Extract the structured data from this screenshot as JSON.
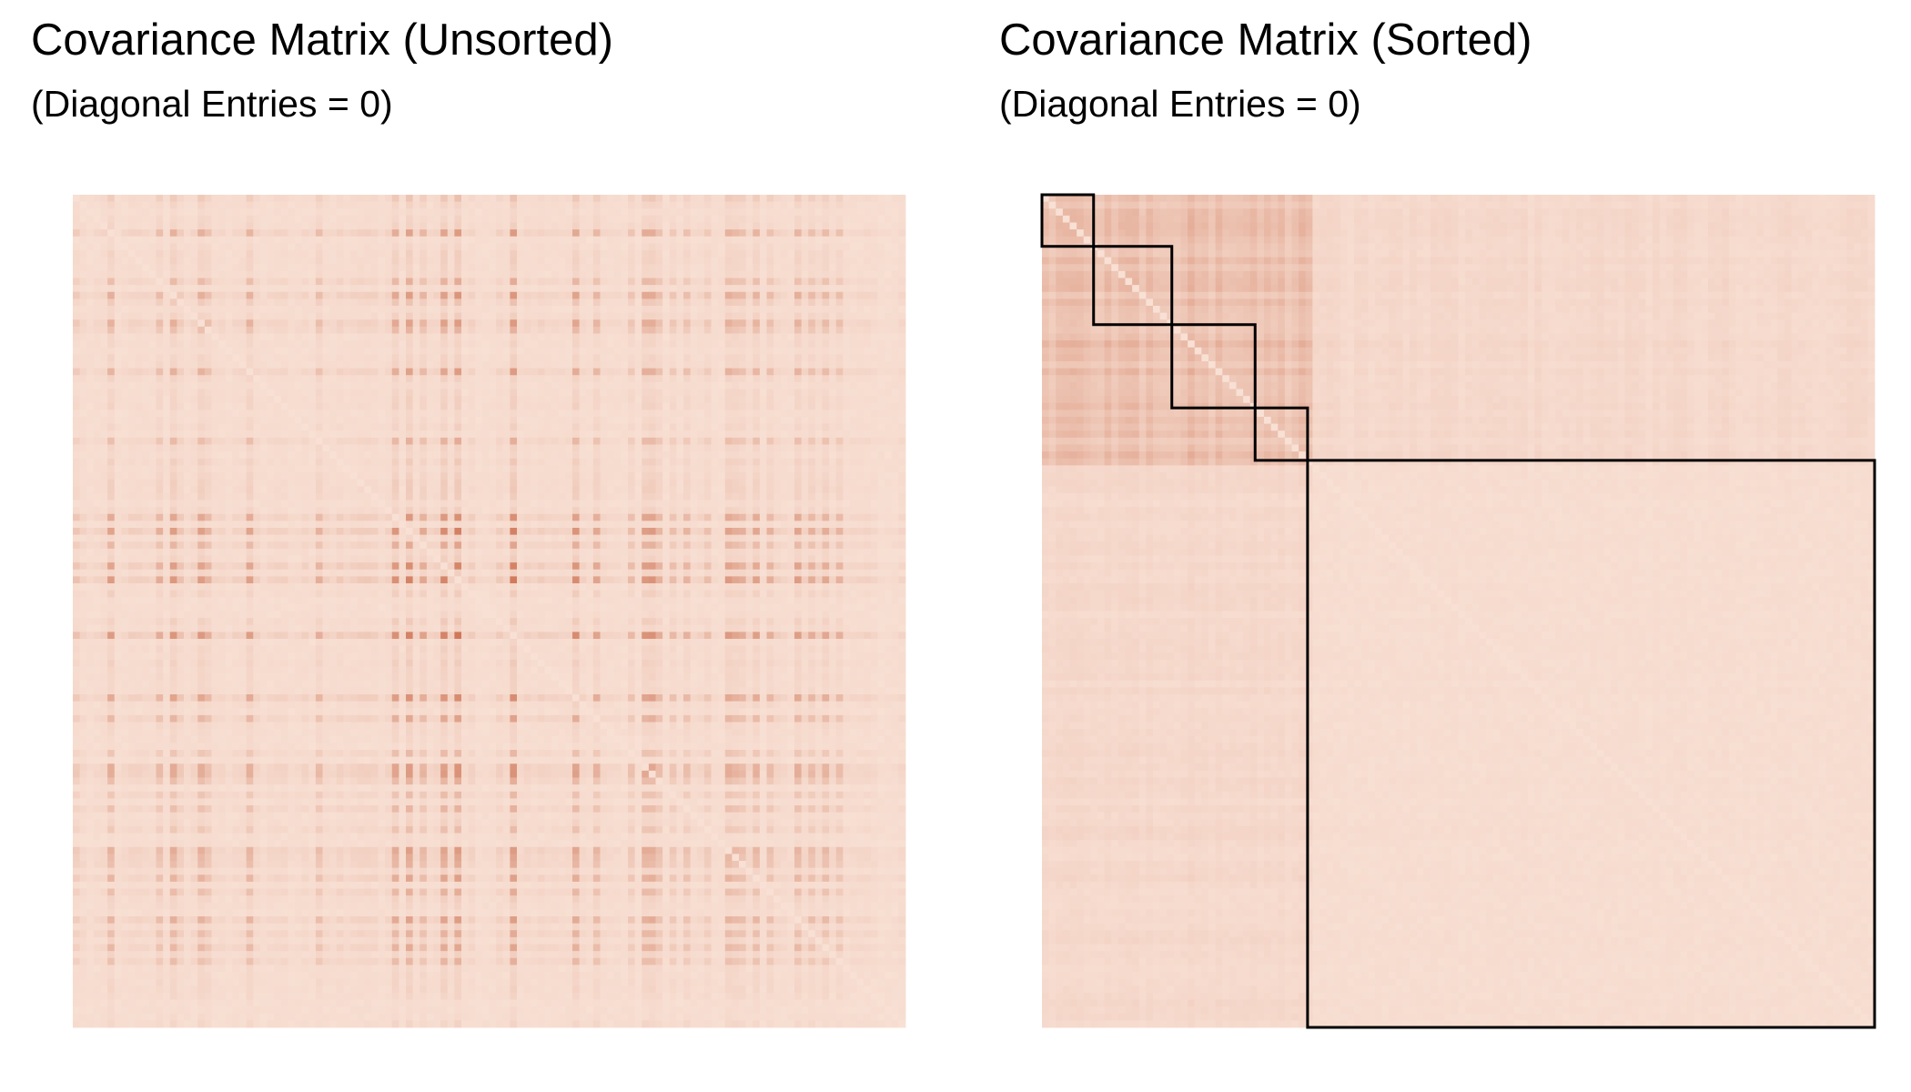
{
  "chart_data": [
    {
      "type": "heatmap",
      "title": "Covariance Matrix (Unsorted)",
      "subtitle": "(Diagonal Entries = 0)",
      "xlabel": "",
      "ylabel": "",
      "grid": false,
      "legend": "none",
      "color_low": "#f8e0d4",
      "color_high": "#c0502a",
      "block_outlines": []
    },
    {
      "type": "heatmap",
      "title": "Covariance Matrix (Sorted)",
      "subtitle": "(Diagonal Entries = 0)",
      "xlabel": "",
      "ylabel": "",
      "grid": false,
      "legend": "none",
      "color_low": "#f8e0d4",
      "color_high": "#c0502a",
      "outline_color": "#000000",
      "block_outlines": [
        {
          "start": 0.0,
          "end": 0.062
        },
        {
          "start": 0.062,
          "end": 0.156
        },
        {
          "start": 0.156,
          "end": 0.256
        },
        {
          "start": 0.256,
          "end": 0.319
        },
        {
          "start": 0.319,
          "end": 1.0
        }
      ]
    }
  ]
}
